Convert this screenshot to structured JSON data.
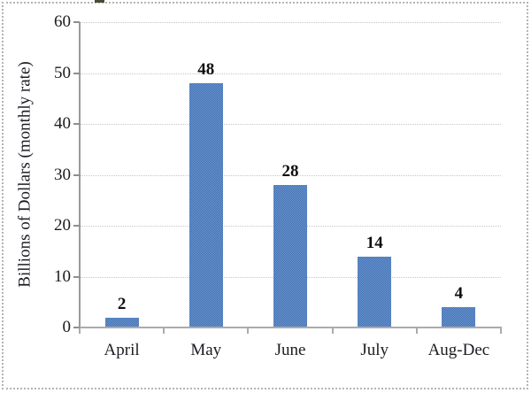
{
  "figure": {
    "background": "#ffffff",
    "border_color": "#b4b4b4"
  },
  "chart_data": {
    "type": "bar",
    "categories": [
      "April",
      "May",
      "June",
      "July",
      "Aug-Dec"
    ],
    "values": [
      2,
      48,
      28,
      14,
      4
    ],
    "data_labels": [
      "2",
      "48",
      "28",
      "14",
      "4"
    ],
    "title": "",
    "xlabel": "",
    "ylabel": "Billions of Dollars (monthly rate)",
    "ylim": [
      0,
      60
    ],
    "yticks": [
      0,
      10,
      20,
      30,
      40,
      50,
      60
    ],
    "grid": true,
    "legend": "none",
    "bar_color": "#4f81bd",
    "gridline_color": "#c6c6c6",
    "axis_color": "#9a9a9a",
    "text_color": "#1b1b22"
  }
}
